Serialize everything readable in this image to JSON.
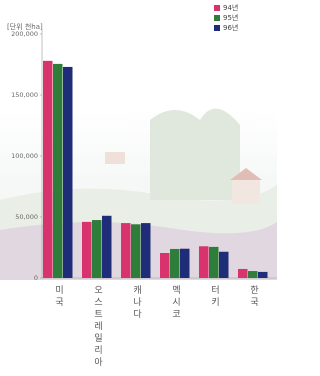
{
  "chart_data": {
    "type": "bar",
    "unit_label": "[단위 천ha]",
    "categories": [
      "미국",
      "오스트레일리아",
      "캐나다",
      "멕시코",
      "터키",
      "한국"
    ],
    "series": [
      {
        "name": "94년",
        "color": "#d8336d",
        "values": [
          178000,
          46000,
          45000,
          20500,
          26000,
          7400
        ]
      },
      {
        "name": "95년",
        "color": "#2e7d3a",
        "values": [
          175500,
          47500,
          44000,
          23800,
          25500,
          5700
        ]
      },
      {
        "name": "96년",
        "color": "#1f2c78",
        "values": [
          173000,
          51000,
          45000,
          24000,
          21500,
          5000
        ]
      }
    ],
    "ylim": [
      0,
      200000
    ],
    "yticks": [
      0,
      {
        "value": 50000,
        "label": "50,000"
      },
      {
        "value": 100000,
        "label": "100,000"
      },
      {
        "value": 150000,
        "label": "150,000"
      },
      {
        "value": 200000,
        "label": "200,000"
      }
    ]
  }
}
